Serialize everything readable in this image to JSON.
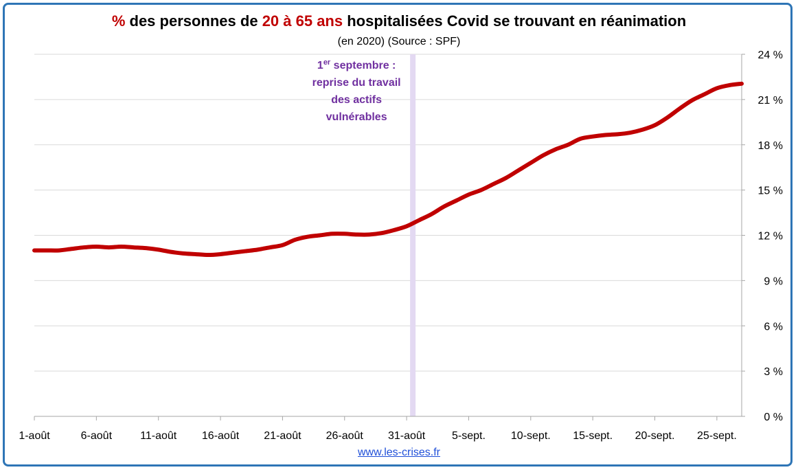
{
  "title": {
    "part1": "%",
    "part2": " des personnes de ",
    "part3": "20 à 65 ans",
    "part4": " hospitalisées Covid se trouvant en réanimation"
  },
  "subtitle": "(en 2020) (Source : SPF)",
  "source_link": "www.les-crises.fr",
  "colors": {
    "line": "#c00000",
    "title_highlight": "#c00000",
    "annotation": "#7030a0",
    "marker_band": "#e3d9f2",
    "frame": "#2e75b6"
  },
  "annotation": {
    "line1_prefix": "1",
    "line1_sup": "er",
    "line1_suffix": " septembre :",
    "line2": "reprise du travail",
    "line3": "des actifs",
    "line4": "vulnérables",
    "at_x": 30.5
  },
  "chart_data": {
    "type": "line",
    "x_unit": "days since 1 Aug 2020",
    "xlim": [
      0,
      57
    ],
    "ylim": [
      0,
      24
    ],
    "y_ticks": [
      0,
      3,
      6,
      9,
      12,
      15,
      18,
      21,
      24
    ],
    "y_tick_labels": [
      "0 %",
      "3 %",
      "6 %",
      "9 %",
      "12 %",
      "15 %",
      "18 %",
      "21 %",
      "24 %"
    ],
    "x_ticks": [
      0,
      5,
      10,
      15,
      20,
      25,
      30,
      35,
      40,
      45,
      50,
      55
    ],
    "x_tick_labels": [
      "1-août",
      "6-août",
      "11-août",
      "16-août",
      "21-août",
      "26-août",
      "31-août",
      "5-sept.",
      "10-sept.",
      "15-sept.",
      "20-sept.",
      "25-sept."
    ],
    "grid": true,
    "y_axis_position": "right",
    "series": [
      {
        "values": [
          11.0,
          11.0,
          11.0,
          11.1,
          11.2,
          11.25,
          11.2,
          11.25,
          11.2,
          11.15,
          11.05,
          10.9,
          10.8,
          10.75,
          10.7,
          10.75,
          10.85,
          10.95,
          11.05,
          11.2,
          11.35,
          11.7,
          11.9,
          12.0,
          12.1,
          12.1,
          12.05,
          12.05,
          12.15,
          12.35,
          12.6,
          13.0,
          13.4,
          13.9,
          14.3,
          14.7,
          15.0,
          15.4,
          15.8,
          16.3,
          16.8,
          17.3,
          17.7,
          18.0,
          18.4,
          18.55,
          18.65,
          18.7,
          18.8,
          19.0,
          19.3,
          19.8,
          20.4,
          20.95,
          21.35,
          21.75,
          21.95,
          22.05
        ]
      }
    ]
  }
}
